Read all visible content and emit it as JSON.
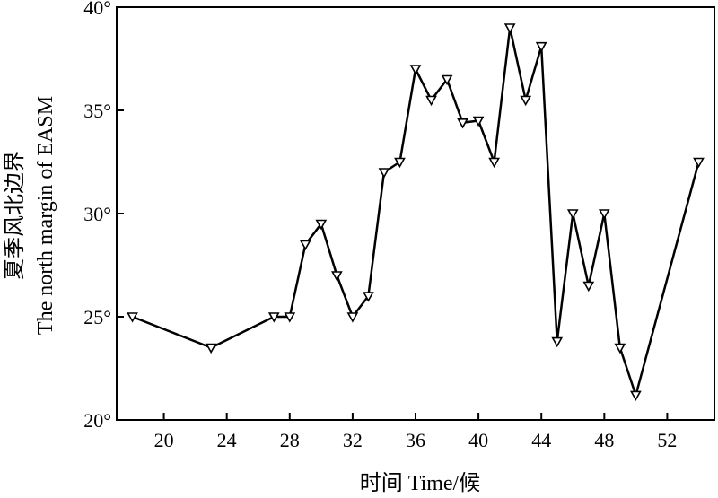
{
  "chart_data": {
    "type": "line",
    "xlabel": "时间 Time/候",
    "ylabel_line1": "夏季风北边界",
    "ylabel_line2": "The north margin of EASM",
    "xlim": [
      17,
      55
    ],
    "ylim": [
      20,
      40
    ],
    "xticks": [
      20,
      24,
      28,
      32,
      36,
      40,
      44,
      48,
      52
    ],
    "yticks": [
      20,
      25,
      30,
      35,
      40
    ],
    "ytick_labels": [
      "20°",
      "25°",
      "30°",
      "35°",
      "40°"
    ],
    "grid": false,
    "marker": "triangle-down",
    "series": [
      {
        "x": [
          18,
          23,
          27,
          28,
          29,
          30,
          31,
          32,
          33,
          34,
          35,
          36,
          37,
          38,
          39,
          40,
          41,
          42,
          43,
          44,
          45,
          46,
          47,
          48,
          49,
          50,
          54
        ],
        "y": [
          25,
          23.5,
          25,
          25,
          28.5,
          29.5,
          27,
          25,
          26,
          32,
          32.5,
          37,
          35.5,
          36.5,
          34.4,
          34.5,
          32.5,
          39,
          35.5,
          38.1,
          23.8,
          30,
          26.5,
          30,
          23.5,
          21.2,
          32.5
        ]
      }
    ]
  }
}
